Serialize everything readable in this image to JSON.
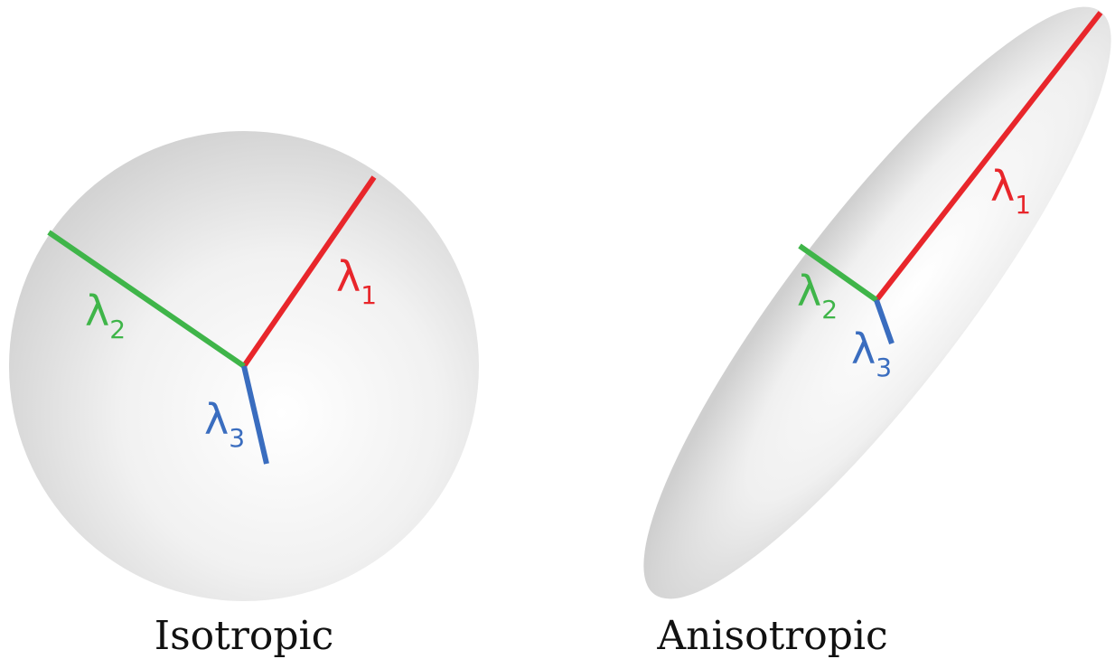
{
  "panels": [
    {
      "title": "Isotropic",
      "axes": [
        {
          "symbol": "λ",
          "subscript": "1"
        },
        {
          "symbol": "λ",
          "subscript": "2"
        },
        {
          "symbol": "λ",
          "subscript": "3"
        }
      ]
    },
    {
      "title": "Anisotropic",
      "axes": [
        {
          "symbol": "λ",
          "subscript": "1"
        },
        {
          "symbol": "λ",
          "subscript": "2"
        },
        {
          "symbol": "λ",
          "subscript": "3"
        }
      ]
    }
  ]
}
